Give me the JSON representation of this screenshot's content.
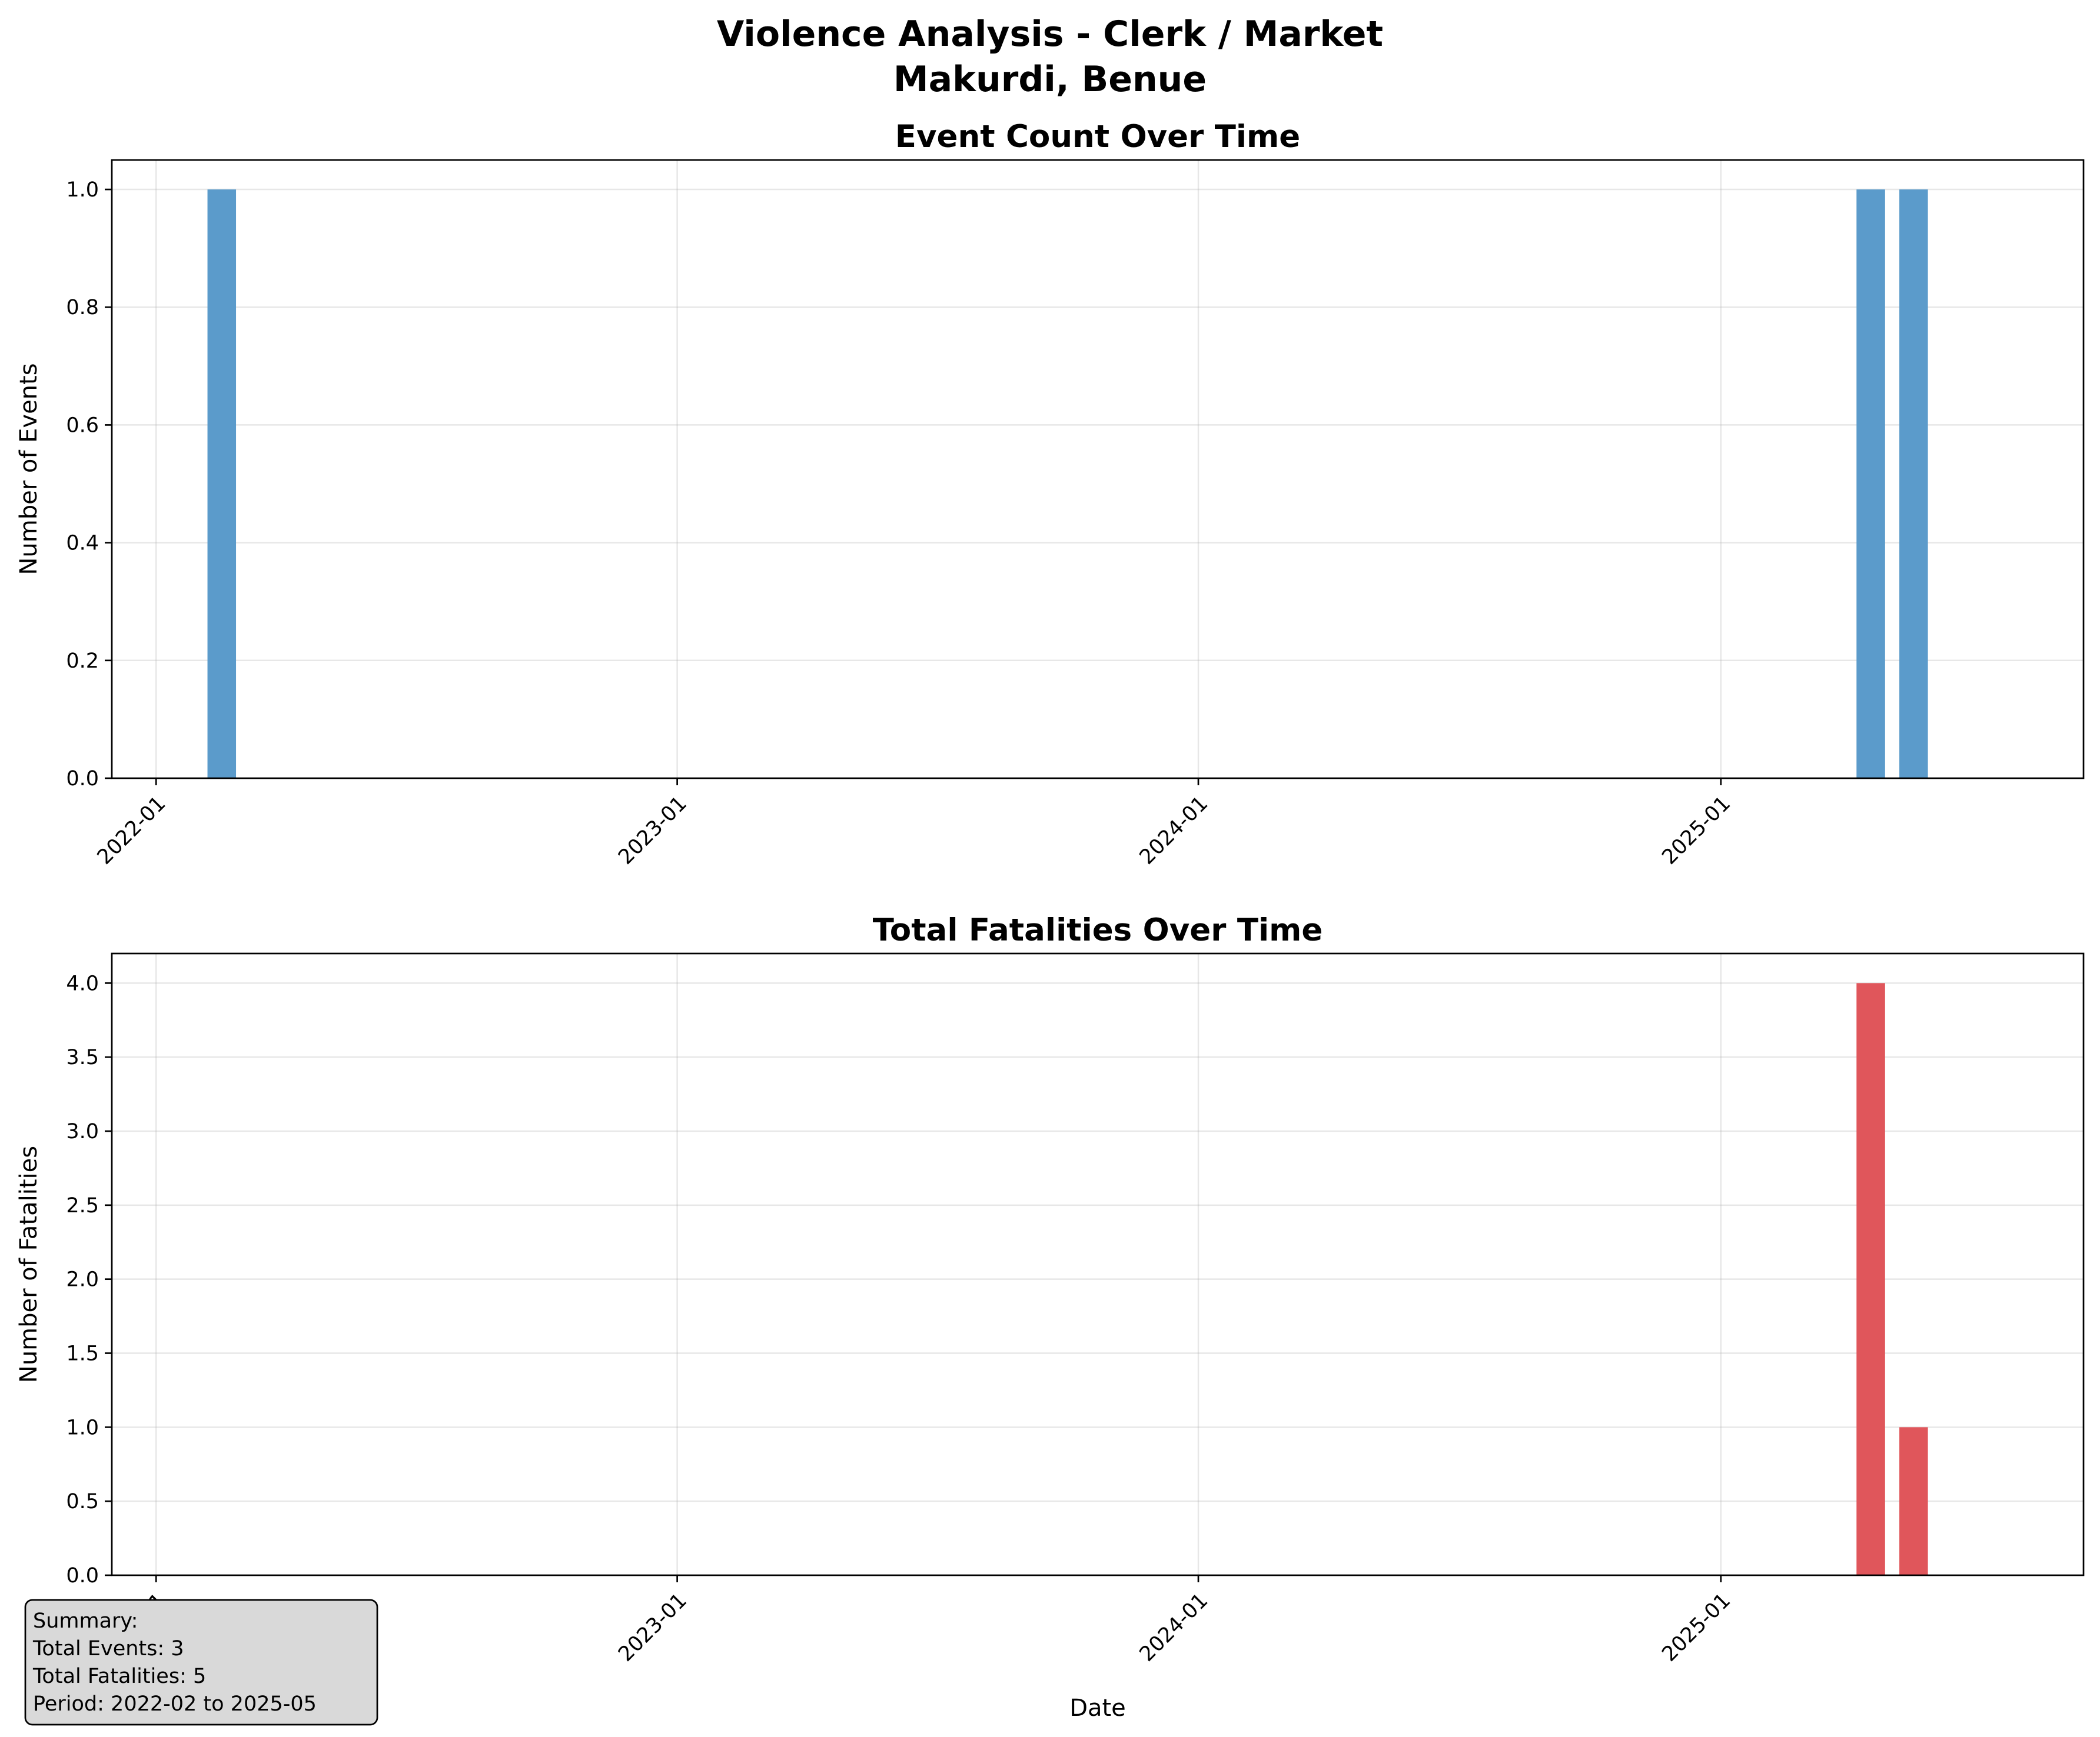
{
  "figure": {
    "title_line1": "Violence Analysis - Clerk / Market",
    "title_line2": "Makurdi, Benue"
  },
  "chart_data": [
    {
      "type": "bar",
      "title": "Event Count Over Time",
      "xlabel": "",
      "ylabel": "Number of Events",
      "x_type": "date",
      "xlim": [
        "2021-12-01",
        "2025-09-12"
      ],
      "ylim": [
        0,
        1.05
      ],
      "xticks": [
        "2022-01",
        "2023-01",
        "2024-01",
        "2025-01"
      ],
      "yticks": [
        "0.0",
        "0.2",
        "0.4",
        "0.6",
        "0.8",
        "1.0"
      ],
      "x": [
        "2022-02",
        "2025-04",
        "2025-05"
      ],
      "values": [
        1,
        1,
        1
      ],
      "color": "#5b9bcb",
      "grid": true
    },
    {
      "type": "bar",
      "title": "Total Fatalities Over Time",
      "xlabel": "Date",
      "ylabel": "Number of Fatalities",
      "x_type": "date",
      "xlim": [
        "2021-12-01",
        "2025-09-12"
      ],
      "ylim": [
        0,
        4.2
      ],
      "xticks": [
        "2022-01",
        "2023-01",
        "2024-01",
        "2025-01"
      ],
      "yticks": [
        "0.0",
        "0.5",
        "1.0",
        "1.5",
        "2.0",
        "2.5",
        "3.0",
        "3.5",
        "4.0"
      ],
      "x": [
        "2025-04",
        "2025-05"
      ],
      "values": [
        4,
        1
      ],
      "color": "#e0565b",
      "grid": true
    }
  ],
  "summary": {
    "line1": "Summary:",
    "line2": "Total Events: 3",
    "line3": "Total Fatalities: 5",
    "line4": "Period: 2022-02 to 2025-05"
  }
}
